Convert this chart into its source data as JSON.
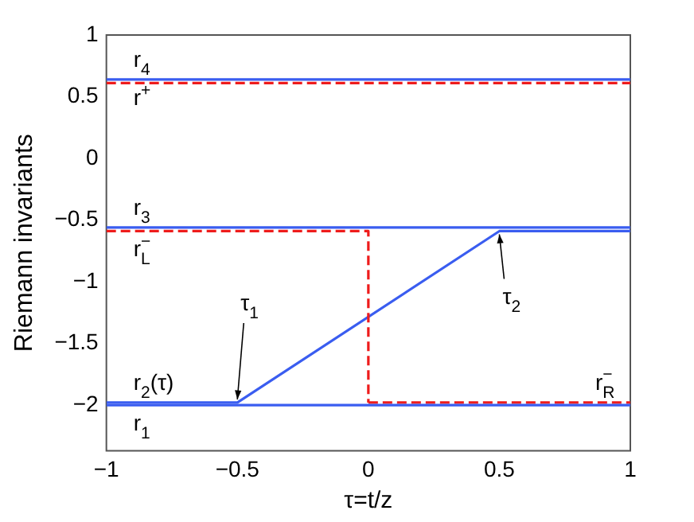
{
  "chart_data": {
    "type": "line",
    "xlabel": "τ=t/z",
    "ylabel": "Riemann invariants",
    "xlim": [
      -1,
      1
    ],
    "xticks": [
      -1,
      -0.5,
      0,
      0.5,
      1
    ],
    "ylim": [
      -2.37,
      1
    ],
    "yticks": [
      1,
      0.5,
      0,
      -0.5,
      -1,
      -1.5,
      -2
    ],
    "grid": false,
    "legend": false,
    "marker": "none",
    "series": [
      {
        "name": "r$_{4}$",
        "color": "#3a5df0",
        "line_style": "solid",
        "x": [
          -1,
          1
        ],
        "values": [
          0.64,
          0.64
        ]
      },
      {
        "name": "r$^{+}$",
        "color": "#ee1c1c",
        "line_style": "dashed",
        "x": [
          -1,
          1
        ],
        "values": [
          0.61,
          0.61
        ]
      },
      {
        "name": "r$_{3}$",
        "color": "#3a5df0",
        "line_style": "solid",
        "x": [
          -1,
          1
        ],
        "values": [
          -0.56,
          -0.56
        ]
      },
      {
        "name": "r$_{L}$$^{−}$",
        "color": "#ee1c1c",
        "line_style": "dashed",
        "x": [
          -1,
          0,
          0
        ],
        "values": [
          -0.59,
          -0.59,
          -1.98
        ]
      },
      {
        "name": "r$_{2}$(τ)",
        "color": "#3a5df0",
        "line_style": "solid",
        "x": [
          -1,
          -0.5,
          0.5,
          1
        ],
        "values": [
          -1.98,
          -1.98,
          -0.59,
          -0.59
        ]
      },
      {
        "name": "r$_{1}$",
        "color": "#3a5df0",
        "line_style": "solid",
        "x": [
          -1,
          1
        ],
        "values": [
          -2,
          -2
        ]
      },
      {
        "name": "r$_{R}$$^{−}$",
        "color": "#ee1c1c",
        "line_style": "dashed",
        "x": [
          0,
          1
        ],
        "values": [
          -1.98,
          -1.98
        ]
      }
    ],
    "annotations": [
      {
        "text": "τ$_{1}$",
        "x": -0.5,
        "y": -1.98
      },
      {
        "text": "τ$_{2}$",
        "x": 0.5,
        "y": -0.59
      }
    ]
  }
}
